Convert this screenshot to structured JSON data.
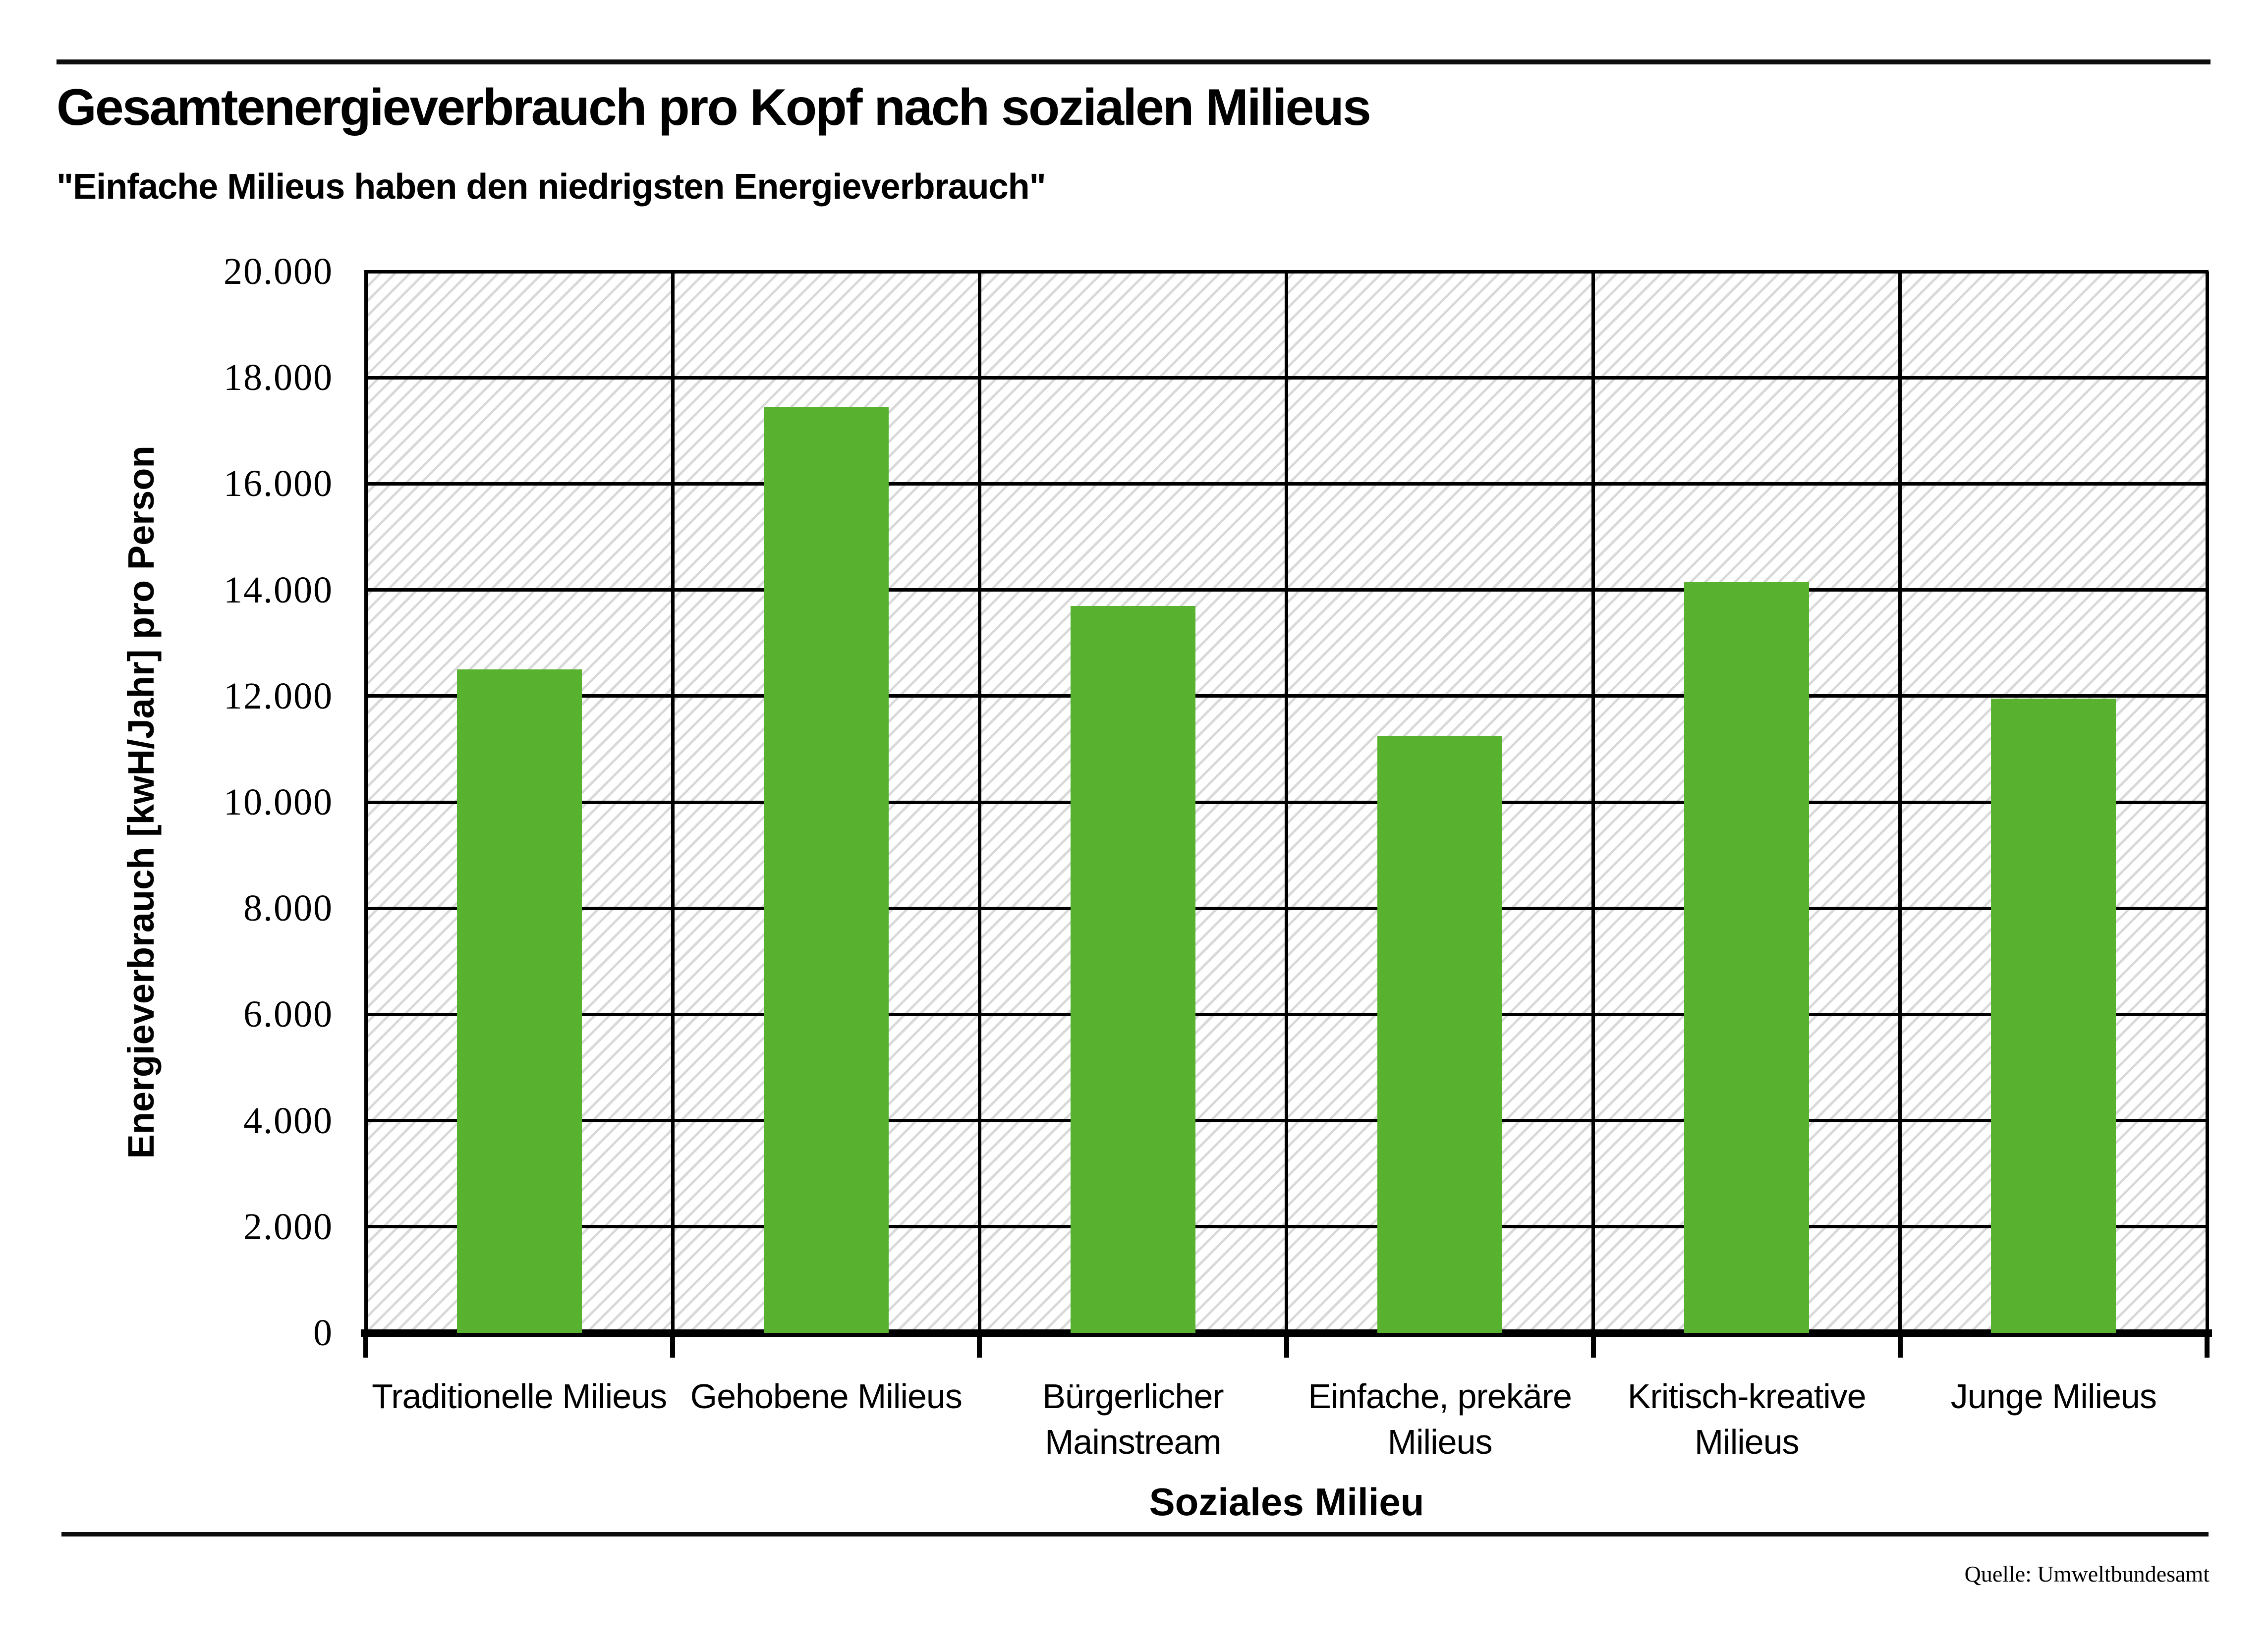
{
  "source_note": "Quelle: Umweltbundesamt",
  "chart_data": {
    "type": "bar",
    "title": "Gesamtenergieverbrauch pro Kopf nach sozialen Milieus",
    "subtitle": "\"Einfache Milieus haben den niedrigsten Energieverbrauch\"",
    "categories": [
      "Traditionelle Milieus",
      "Gehobene Milieus",
      "Bürgerlicher Mainstream",
      "Einfache, prekäre Milieus",
      "Kritisch-kreative Milieus",
      "Junge Milieus"
    ],
    "values": [
      12500,
      17450,
      13700,
      11250,
      14150,
      11950
    ],
    "xlabel": "Soziales Milieu",
    "ylabel": "Energieverbrauch [kwH/Jahr] pro Person",
    "ylim": [
      0,
      20000
    ],
    "ytick_step": 2000,
    "ytick_labels": [
      "0",
      "2.000",
      "4.000",
      "6.000",
      "8.000",
      "10.000",
      "12.000",
      "14.000",
      "16.000",
      "18.000",
      "20.000"
    ],
    "bar_color": "#58b22f",
    "grid": "on",
    "legend": "none",
    "plot_background": "diagonal-hatch"
  }
}
